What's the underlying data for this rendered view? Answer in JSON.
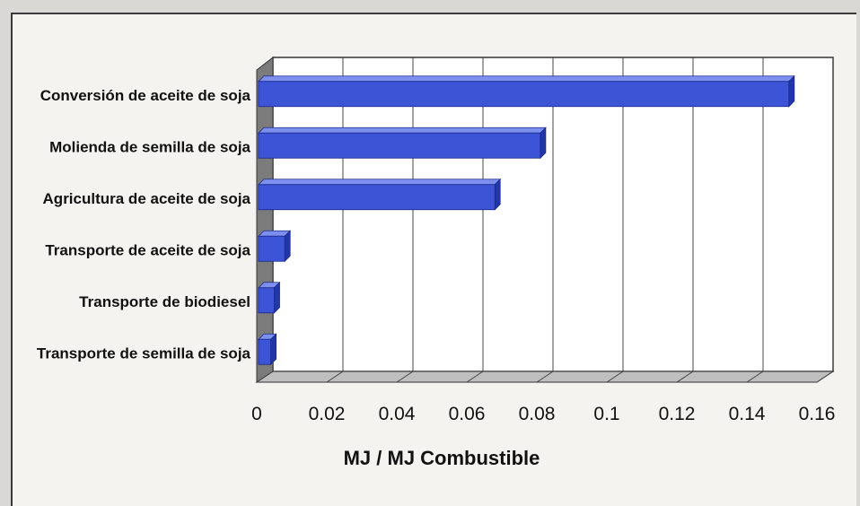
{
  "chart_data": {
    "type": "bar",
    "orientation": "horizontal",
    "style": "3d",
    "categories": [
      "Conversión de aceite de soja",
      "Molienda de semilla de soja",
      "Agricultura de aceite de soja",
      "Transporte de aceite de soja",
      "Transporte de biodiesel",
      "Transporte de semilla de soja"
    ],
    "values": [
      0.152,
      0.081,
      0.068,
      0.008,
      0.005,
      0.004
    ],
    "xlabel": "MJ / MJ Combustible",
    "xlim": [
      0,
      0.16
    ],
    "xticks": [
      "0",
      "0.02",
      "0.04",
      "0.06",
      "0.08",
      "0.1",
      "0.12",
      "0.14",
      "0.16"
    ],
    "grid": true,
    "bar_color": "#3c54d6"
  }
}
